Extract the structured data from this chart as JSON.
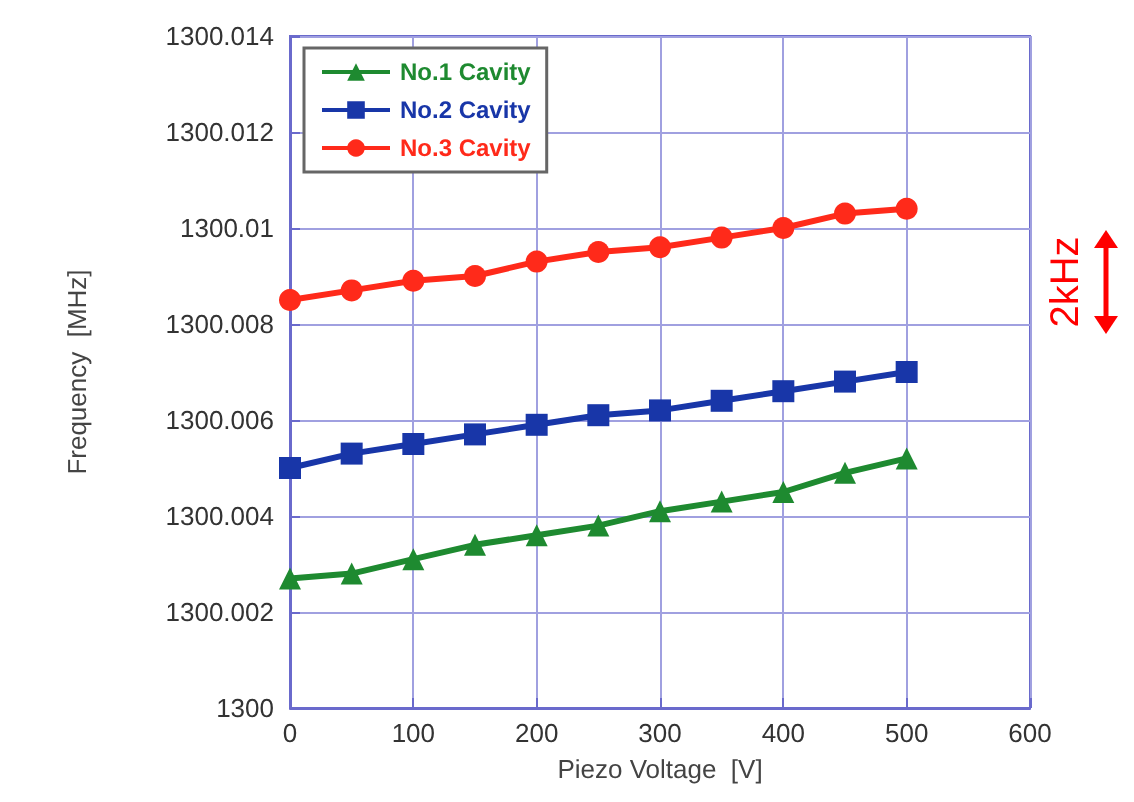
{
  "chart_data": {
    "type": "line",
    "xlabel": "Piezo Voltage  [V]",
    "ylabel": "Frequency  [MHz]",
    "x": [
      0,
      50,
      100,
      150,
      200,
      250,
      300,
      350,
      400,
      450,
      500
    ],
    "series": [
      {
        "name": "No.1 Cavity",
        "color": "#1e8a30",
        "marker": "triangle",
        "values": [
          1300.0027,
          1300.0028,
          1300.0031,
          1300.0034,
          1300.0036,
          1300.0038,
          1300.0041,
          1300.0043,
          1300.0045,
          1300.0049,
          1300.0052
        ]
      },
      {
        "name": "No.2 Cavity",
        "color": "#1836a8",
        "marker": "square",
        "values": [
          1300.005,
          1300.0053,
          1300.0055,
          1300.0057,
          1300.0059,
          1300.0061,
          1300.0062,
          1300.0064,
          1300.0066,
          1300.0068,
          1300.007
        ]
      },
      {
        "name": "No.3 Cavity",
        "color": "#ff2a1a",
        "marker": "circle",
        "values": [
          1300.0085,
          1300.0087,
          1300.0089,
          1300.009,
          1300.0093,
          1300.0095,
          1300.0096,
          1300.0098,
          1300.01,
          1300.0103,
          1300.0104
        ]
      }
    ],
    "xlim": [
      0,
      600
    ],
    "xticks": [
      0,
      100,
      200,
      300,
      400,
      500,
      600
    ],
    "ylim": [
      1300,
      1300.014
    ],
    "yticks": [
      1300,
      1300.002,
      1300.004,
      1300.006,
      1300.008,
      1300.01,
      1300.012,
      1300.014
    ],
    "grid": true,
    "legend": "top left",
    "line_style": "solid",
    "annotations": [
      "2kHz"
    ]
  }
}
